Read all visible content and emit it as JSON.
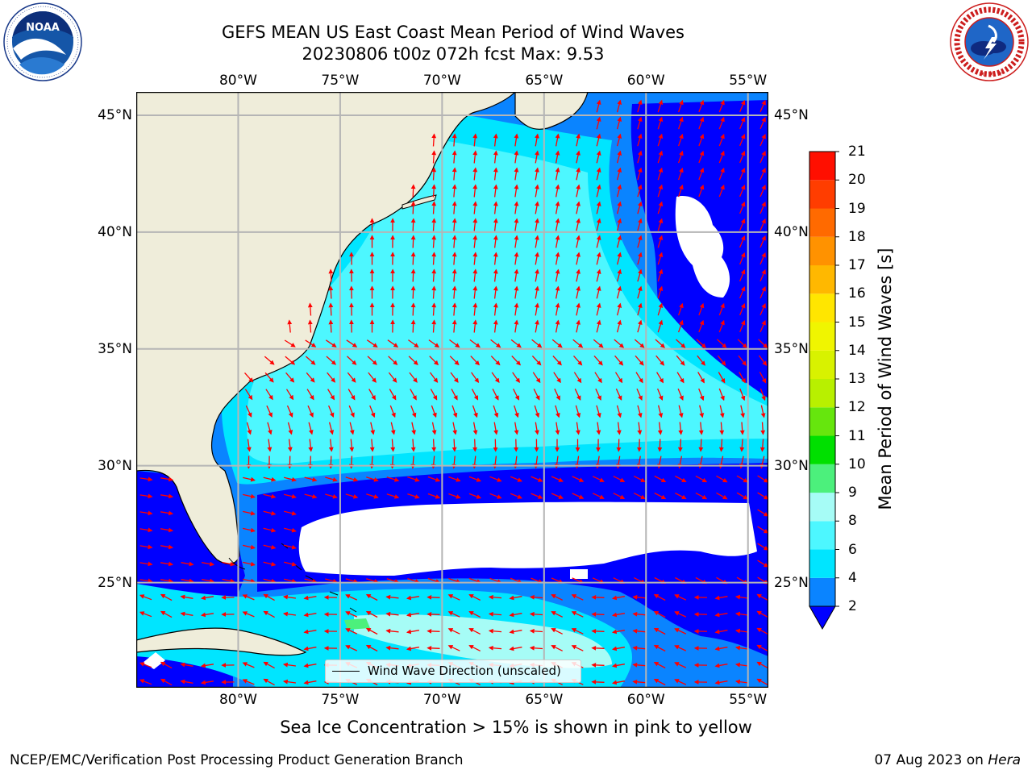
{
  "header": {
    "title_line1": "GEFS MEAN US East Coast Mean Period of Wind Waves",
    "title_line2": "20230806 t00z 072h fcst   Max: 9.53"
  },
  "logos": {
    "left": {
      "icon": "noaa-logo-icon",
      "text": "NOAA",
      "ring_text": "NATIONAL OCEANIC AND ATMOSPHERIC ADMINISTRATION · U.S. DEPARTMENT OF COMMERCE"
    },
    "right": {
      "icon": "nws-logo-icon",
      "ring_text": "NATIONAL WEATHER SERVICE"
    }
  },
  "map": {
    "region": "US East Coast / Western North Atlantic",
    "lon_range": [
      -85,
      -54
    ],
    "lat_range": [
      20.5,
      46
    ],
    "lon_ticks": [
      "80°W",
      "75°W",
      "70°W",
      "65°W",
      "60°W",
      "55°W"
    ],
    "lat_ticks": [
      "45°N",
      "40°N",
      "35°N",
      "30°N",
      "25°N"
    ],
    "grid": true,
    "colors": {
      "land": "#efedda",
      "arrows": "#ff0000",
      "grid": "#b5b5b5",
      "no_data": "#ffffff"
    },
    "legend": {
      "label": "Wind Wave Direction (unscaled)",
      "position": "bottom-center"
    }
  },
  "colorbar": {
    "title": "Mean Period of Wind Waves [s]",
    "tick_labels": [
      "2",
      "4",
      "6",
      "8",
      "9",
      "10",
      "11",
      "12",
      "13",
      "14",
      "15",
      "16",
      "17",
      "18",
      "19",
      "20",
      "21"
    ],
    "bins": [
      {
        "from": 2,
        "to": 4,
        "color": "#0a84ff"
      },
      {
        "from": 4,
        "to": 6,
        "color": "#00e5ff"
      },
      {
        "from": 6,
        "to": 8,
        "color": "#4df7ff"
      },
      {
        "from": 8,
        "to": 9,
        "color": "#a6fcf6"
      },
      {
        "from": 9,
        "to": 10,
        "color": "#4cf07c"
      },
      {
        "from": 10,
        "to": 11,
        "color": "#00e000"
      },
      {
        "from": 11,
        "to": 12,
        "color": "#66e60d"
      },
      {
        "from": 12,
        "to": 13,
        "color": "#b8f000"
      },
      {
        "from": 13,
        "to": 14,
        "color": "#d8f200"
      },
      {
        "from": 14,
        "to": 15,
        "color": "#f0f500"
      },
      {
        "from": 15,
        "to": 16,
        "color": "#ffe600"
      },
      {
        "from": 16,
        "to": 17,
        "color": "#ffb800"
      },
      {
        "from": 17,
        "to": 18,
        "color": "#ff9200"
      },
      {
        "from": 18,
        "to": 19,
        "color": "#ff6a00"
      },
      {
        "from": 19,
        "to": 20,
        "color": "#ff3d00"
      },
      {
        "from": 20,
        "to": 21,
        "color": "#ff0f00"
      }
    ],
    "under_color": "#0000ff",
    "extend": "min"
  },
  "caption": "Sea Ice Concentration > 15% is shown in pink to yellow",
  "footer": {
    "left": "NCEP/EMC/Verification Post Processing Product Generation Branch",
    "right_date": "07 Aug 2023 on ",
    "right_host": "Hera"
  }
}
